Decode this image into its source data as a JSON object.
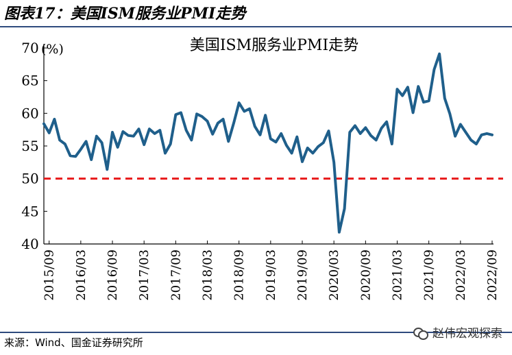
{
  "figure": {
    "title": "图表17：美国ISM服务业PMI走势",
    "source": "来源：Wind、国金证券研究所",
    "watermark": "赵伟宏观探索",
    "watermark_icon": "wechat-icon"
  },
  "chart_data": {
    "type": "line",
    "title": "美国ISM服务业PMI走势",
    "ylabel": "(%)",
    "xlabel": "",
    "ylim": [
      40,
      70
    ],
    "yticks": [
      40,
      45,
      50,
      55,
      60,
      65,
      70
    ],
    "xticks": [
      "2015/09",
      "2016/03",
      "2016/09",
      "2017/03",
      "2017/09",
      "2018/03",
      "2018/09",
      "2019/03",
      "2019/09",
      "2020/03",
      "2020/09",
      "2021/03",
      "2021/09",
      "2022/03",
      "2022/09"
    ],
    "x_start": "2015/08",
    "x_end": "2022/09",
    "grid": false,
    "reference_line": {
      "value": 50,
      "color": "#e8191a",
      "style": "dashed"
    },
    "series": [
      {
        "name": "",
        "color": "#1f5f8b",
        "values": [
          58.4,
          57.0,
          59.1,
          55.9,
          55.3,
          53.5,
          53.4,
          54.5,
          55.7,
          52.9,
          56.5,
          55.5,
          51.4,
          57.1,
          54.8,
          57.2,
          56.6,
          56.5,
          57.6,
          55.2,
          57.6,
          56.9,
          57.4,
          53.9,
          55.3,
          59.8,
          60.1,
          57.4,
          55.9,
          59.9,
          59.5,
          58.8,
          56.8,
          58.5,
          59.1,
          55.7,
          58.5,
          61.6,
          60.3,
          60.7,
          58.0,
          56.7,
          59.7,
          56.1,
          55.6,
          56.9,
          55.1,
          53.9,
          56.4,
          52.6,
          54.7,
          53.9,
          54.9,
          55.5,
          57.3,
          52.5,
          41.8,
          45.4,
          57.1,
          58.1,
          56.9,
          57.8,
          56.6,
          55.9,
          57.7,
          58.7,
          55.3,
          63.7,
          62.7,
          64.0,
          60.1,
          64.1,
          61.7,
          61.9,
          66.7,
          69.1,
          62.3,
          59.9,
          56.5,
          58.3,
          57.1,
          55.9,
          55.3,
          56.7,
          56.9,
          56.7
        ]
      }
    ]
  }
}
